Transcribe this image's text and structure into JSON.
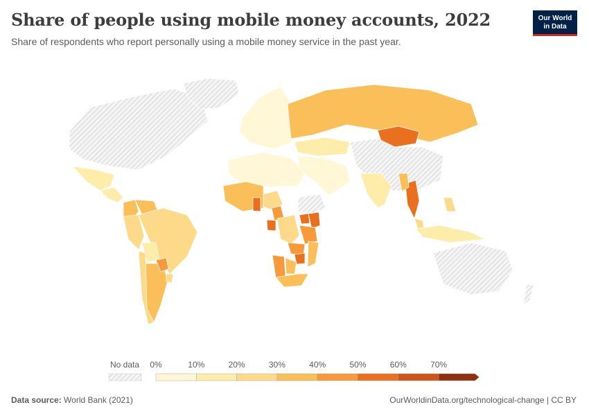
{
  "header": {
    "title": "Share of people using mobile money accounts, 2022",
    "subtitle": "Share of respondents who report personally using a mobile money service in the past year."
  },
  "logo": {
    "line1": "Our World",
    "line2": "in Data"
  },
  "legend": {
    "no_data_label": "No data",
    "ticks": [
      "0%",
      "10%",
      "20%",
      "30%",
      "40%",
      "50%",
      "60%",
      "70%"
    ],
    "colors": [
      "#fff7d6",
      "#feedaa",
      "#fdd98a",
      "#fbbf5a",
      "#f89a3b",
      "#e8701e",
      "#d2531a",
      "#8f3110"
    ],
    "no_data_color": "#e6e6e6"
  },
  "footer": {
    "source_label": "Data source:",
    "source_value": "World Bank (2021)",
    "url": "OurWorldinData.org/technological-change | CC BY"
  },
  "map_data": {
    "regions": [
      {
        "name": "North America",
        "status": "no data"
      },
      {
        "name": "Greenland",
        "status": "no data"
      },
      {
        "name": "Mexico",
        "bin": 1
      },
      {
        "name": "Central America",
        "bin": 1
      },
      {
        "name": "Colombia",
        "bin": 3
      },
      {
        "name": "Venezuela",
        "bin": 3
      },
      {
        "name": "Brazil",
        "bin": 2
      },
      {
        "name": "Peru",
        "bin": 2
      },
      {
        "name": "Bolivia",
        "bin": 1
      },
      {
        "name": "Argentina",
        "bin": 3
      },
      {
        "name": "Chile",
        "bin": 2
      },
      {
        "name": "Paraguay",
        "bin": 4
      },
      {
        "name": "Uruguay",
        "bin": 2
      },
      {
        "name": "Europe",
        "bin": 0
      },
      {
        "name": "Russia",
        "bin": 3
      },
      {
        "name": "Kazakhstan",
        "bin": 1
      },
      {
        "name": "Mongolia",
        "bin": 5
      },
      {
        "name": "China",
        "status": "no data"
      },
      {
        "name": "India",
        "bin": 1
      },
      {
        "name": "Middle East",
        "bin": 0
      },
      {
        "name": "North Africa",
        "bin": 0
      },
      {
        "name": "West Africa",
        "bin": 3
      },
      {
        "name": "Ghana",
        "bin": 5
      },
      {
        "name": "Nigeria",
        "bin": 2
      },
      {
        "name": "Cameroon",
        "bin": 4
      },
      {
        "name": "Gabon",
        "bin": 5
      },
      {
        "name": "DR Congo",
        "bin": 2
      },
      {
        "name": "Kenya",
        "bin": 5
      },
      {
        "name": "Uganda",
        "bin": 5
      },
      {
        "name": "Tanzania",
        "bin": 4
      },
      {
        "name": "Zambia",
        "bin": 4
      },
      {
        "name": "Zimbabwe",
        "bin": 5
      },
      {
        "name": "Mozambique",
        "bin": 3
      },
      {
        "name": "Namibia",
        "bin": 4
      },
      {
        "name": "Botswana",
        "bin": 3
      },
      {
        "name": "South Africa",
        "bin": 3
      },
      {
        "name": "Ethiopia",
        "status": "no data"
      },
      {
        "name": "Thailand",
        "bin": 5
      },
      {
        "name": "Myanmar",
        "bin": 3
      },
      {
        "name": "Malaysia",
        "bin": 2
      },
      {
        "name": "Indonesia",
        "bin": 1
      },
      {
        "name": "Philippines",
        "bin": 2
      },
      {
        "name": "Australia",
        "status": "no data"
      },
      {
        "name": "New Zealand",
        "status": "no data"
      }
    ]
  }
}
